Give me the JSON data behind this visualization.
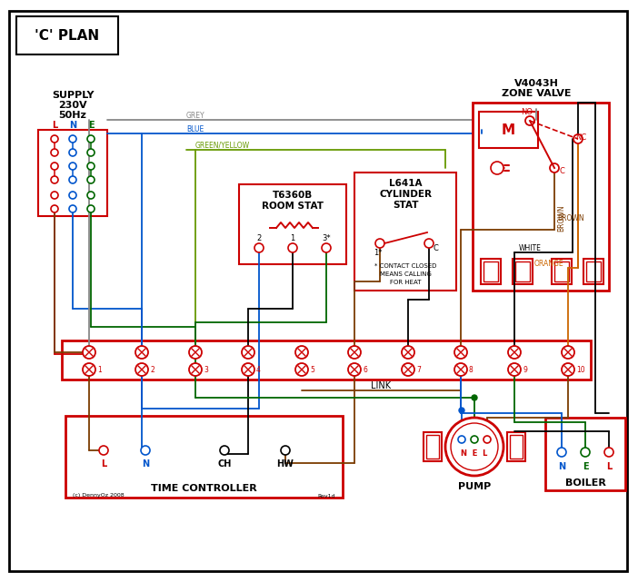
{
  "title": "'C' PLAN",
  "bg_color": "#ffffff",
  "red": "#cc0000",
  "blue": "#0055cc",
  "green": "#006600",
  "brown": "#7B3B00",
  "grey": "#888888",
  "orange": "#cc6600",
  "black": "#000000",
  "green_yellow": "#669900",
  "copyright_text": "(c) DennyOz 2008",
  "rev_text": "Rev1d",
  "link_text": "LINK"
}
